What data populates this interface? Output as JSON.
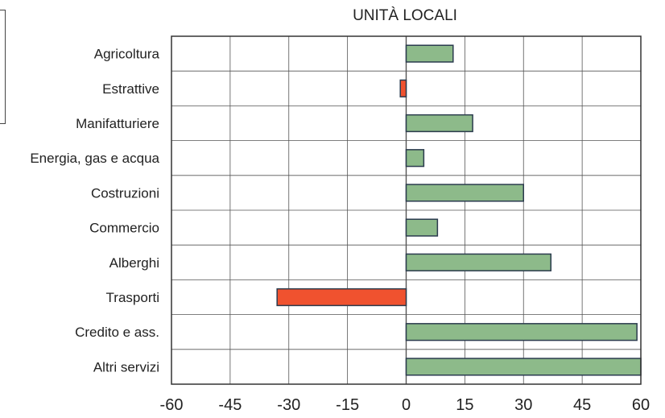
{
  "chart_data": {
    "type": "bar",
    "orientation": "horizontal",
    "title": "UNITÀ LOCALI",
    "categories": [
      "Agricoltura",
      "Estrattive",
      "Manifatturiere",
      "Energia, gas e acqua",
      "Costruzioni",
      "Commercio",
      "Alberghi",
      "Trasporti",
      "Credito e ass.",
      "Altri servizi"
    ],
    "values": [
      12,
      -1.5,
      17,
      4.5,
      30,
      8,
      37,
      -33,
      59,
      60
    ],
    "xlim": [
      -60,
      60
    ],
    "xticks": [
      "-60",
      "-45",
      "-30",
      "-15",
      "0",
      "15",
      "30",
      "45",
      "60"
    ],
    "grid": true,
    "colors": {
      "positive": "#8dba8a",
      "negative": "#f0522f",
      "bar_edge": "#2b3b4e",
      "grid": "#555555",
      "frame": "#333333"
    }
  }
}
